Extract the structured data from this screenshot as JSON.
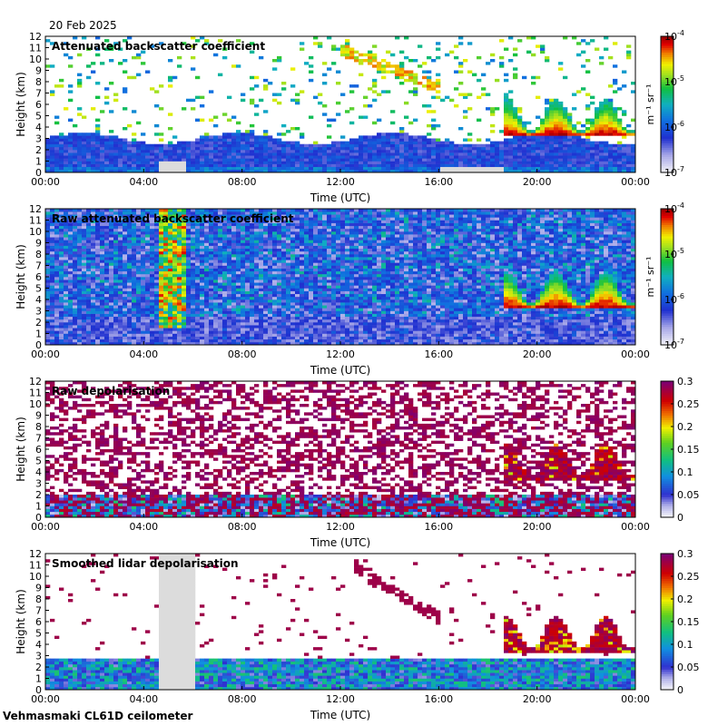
{
  "header": {
    "date": "20 Feb 2025"
  },
  "footer": {
    "site_instrument": "Vehmasmaki CL61D ceilometer"
  },
  "chart_data": [
    {
      "type": "heatmap",
      "title": "Attenuated backscatter coefficient",
      "xlabel": "Time (UTC)",
      "ylabel": "Height (km)",
      "x_range_hours": [
        0,
        24
      ],
      "x_ticks": [
        "00:00",
        "04:00",
        "08:00",
        "12:00",
        "16:00",
        "20:00",
        "00:00"
      ],
      "y_range_km": [
        0,
        12
      ],
      "y_ticks": [
        "0",
        "1",
        "2",
        "3",
        "4",
        "5",
        "6",
        "7",
        "8",
        "9",
        "10",
        "11",
        "12"
      ],
      "colorbar": {
        "scale": "log",
        "min": 1e-07,
        "max": 0.0001,
        "ticks": [
          {
            "base": "10",
            "exp": "-7"
          },
          {
            "base": "10",
            "exp": "-6"
          },
          {
            "base": "10",
            "exp": "-5"
          },
          {
            "base": "10",
            "exp": "-4"
          }
        ],
        "unit_label": "m⁻¹ sr⁻¹"
      },
      "features": [
        {
          "kind": "cloud",
          "t0": 18.7,
          "t1": 24,
          "h0": 3.3,
          "h1": 6.5,
          "intensity": 0.8
        },
        {
          "kind": "cloud_band",
          "t0": 12,
          "t1": 16.1,
          "h_start": 10.8,
          "h_end": 7.5,
          "intensity": 0.7
        },
        {
          "kind": "missing",
          "t0": 4.6,
          "t1": 5.8,
          "h0": 0,
          "h1": 1.0
        },
        {
          "kind": "missing",
          "t0": 16.1,
          "t1": 18.6,
          "h0": 0,
          "h1": 0.4
        }
      ]
    },
    {
      "type": "heatmap",
      "title": "Raw attenuated backscatter coefficient",
      "xlabel": "Time (UTC)",
      "ylabel": "Height (km)",
      "x_range_hours": [
        0,
        24
      ],
      "x_ticks": [
        "00:00",
        "04:00",
        "08:00",
        "12:00",
        "16:00",
        "20:00",
        "00:00"
      ],
      "y_range_km": [
        0,
        12
      ],
      "y_ticks": [
        "0",
        "1",
        "2",
        "3",
        "4",
        "5",
        "6",
        "7",
        "8",
        "9",
        "10",
        "11",
        "12"
      ],
      "colorbar": {
        "scale": "log",
        "min": 1e-07,
        "max": 0.0001,
        "ticks": [
          {
            "base": "10",
            "exp": "-7"
          },
          {
            "base": "10",
            "exp": "-6"
          },
          {
            "base": "10",
            "exp": "-5"
          },
          {
            "base": "10",
            "exp": "-4"
          }
        ],
        "unit_label": "m⁻¹ sr⁻¹"
      },
      "features": [
        {
          "kind": "cloud",
          "t0": 18.7,
          "t1": 24,
          "h0": 3.3,
          "h1": 6.5,
          "intensity": 0.8
        },
        {
          "kind": "noise_high",
          "t0": 4.6,
          "t1": 5.8,
          "h0": 1.5,
          "h1": 12
        }
      ]
    },
    {
      "type": "heatmap",
      "title": "Raw depolarisation",
      "xlabel": "Time (UTC)",
      "ylabel": "Height (km)",
      "x_range_hours": [
        0,
        24
      ],
      "x_ticks": [
        "00:00",
        "04:00",
        "08:00",
        "12:00",
        "16:00",
        "20:00",
        "00:00"
      ],
      "y_range_km": [
        0,
        12
      ],
      "y_ticks": [
        "0",
        "1",
        "2",
        "3",
        "4",
        "5",
        "6",
        "7",
        "8",
        "9",
        "10",
        "11",
        "12"
      ],
      "colorbar": {
        "scale": "linear",
        "min": 0,
        "max": 0.3,
        "ticks": [
          "0",
          "0.05",
          "0.1",
          "0.15",
          "0.2",
          "0.25",
          "0.3"
        ]
      },
      "features": [
        {
          "kind": "cloud",
          "t0": 18.7,
          "t1": 24,
          "h0": 3.3,
          "h1": 6.5,
          "intensity": 0.9
        }
      ]
    },
    {
      "type": "heatmap",
      "title": "Smoothed lidar depolarisation",
      "xlabel": "Time (UTC)",
      "ylabel": "Height (km)",
      "x_range_hours": [
        0,
        24
      ],
      "x_ticks": [
        "00:00",
        "04:00",
        "08:00",
        "12:00",
        "16:00",
        "20:00",
        "00:00"
      ],
      "y_range_km": [
        0,
        12
      ],
      "y_ticks": [
        "0",
        "1",
        "2",
        "3",
        "4",
        "5",
        "6",
        "7",
        "8",
        "9",
        "10",
        "11",
        "12"
      ],
      "colorbar": {
        "scale": "linear",
        "min": 0,
        "max": 0.3,
        "ticks": [
          "0",
          "0.05",
          "0.1",
          "0.15",
          "0.2",
          "0.25",
          "0.3"
        ]
      },
      "features": [
        {
          "kind": "cloud",
          "t0": 18.7,
          "t1": 24,
          "h0": 3.3,
          "h1": 6.5,
          "intensity": 0.9
        },
        {
          "kind": "cloud_band",
          "t0": 12.5,
          "t1": 16.1,
          "h_start": 10.8,
          "h_end": 6.2,
          "intensity": 0.9
        },
        {
          "kind": "missing",
          "t0": 4.6,
          "t1": 6.0,
          "h0": 0,
          "h1": 12
        }
      ]
    }
  ]
}
